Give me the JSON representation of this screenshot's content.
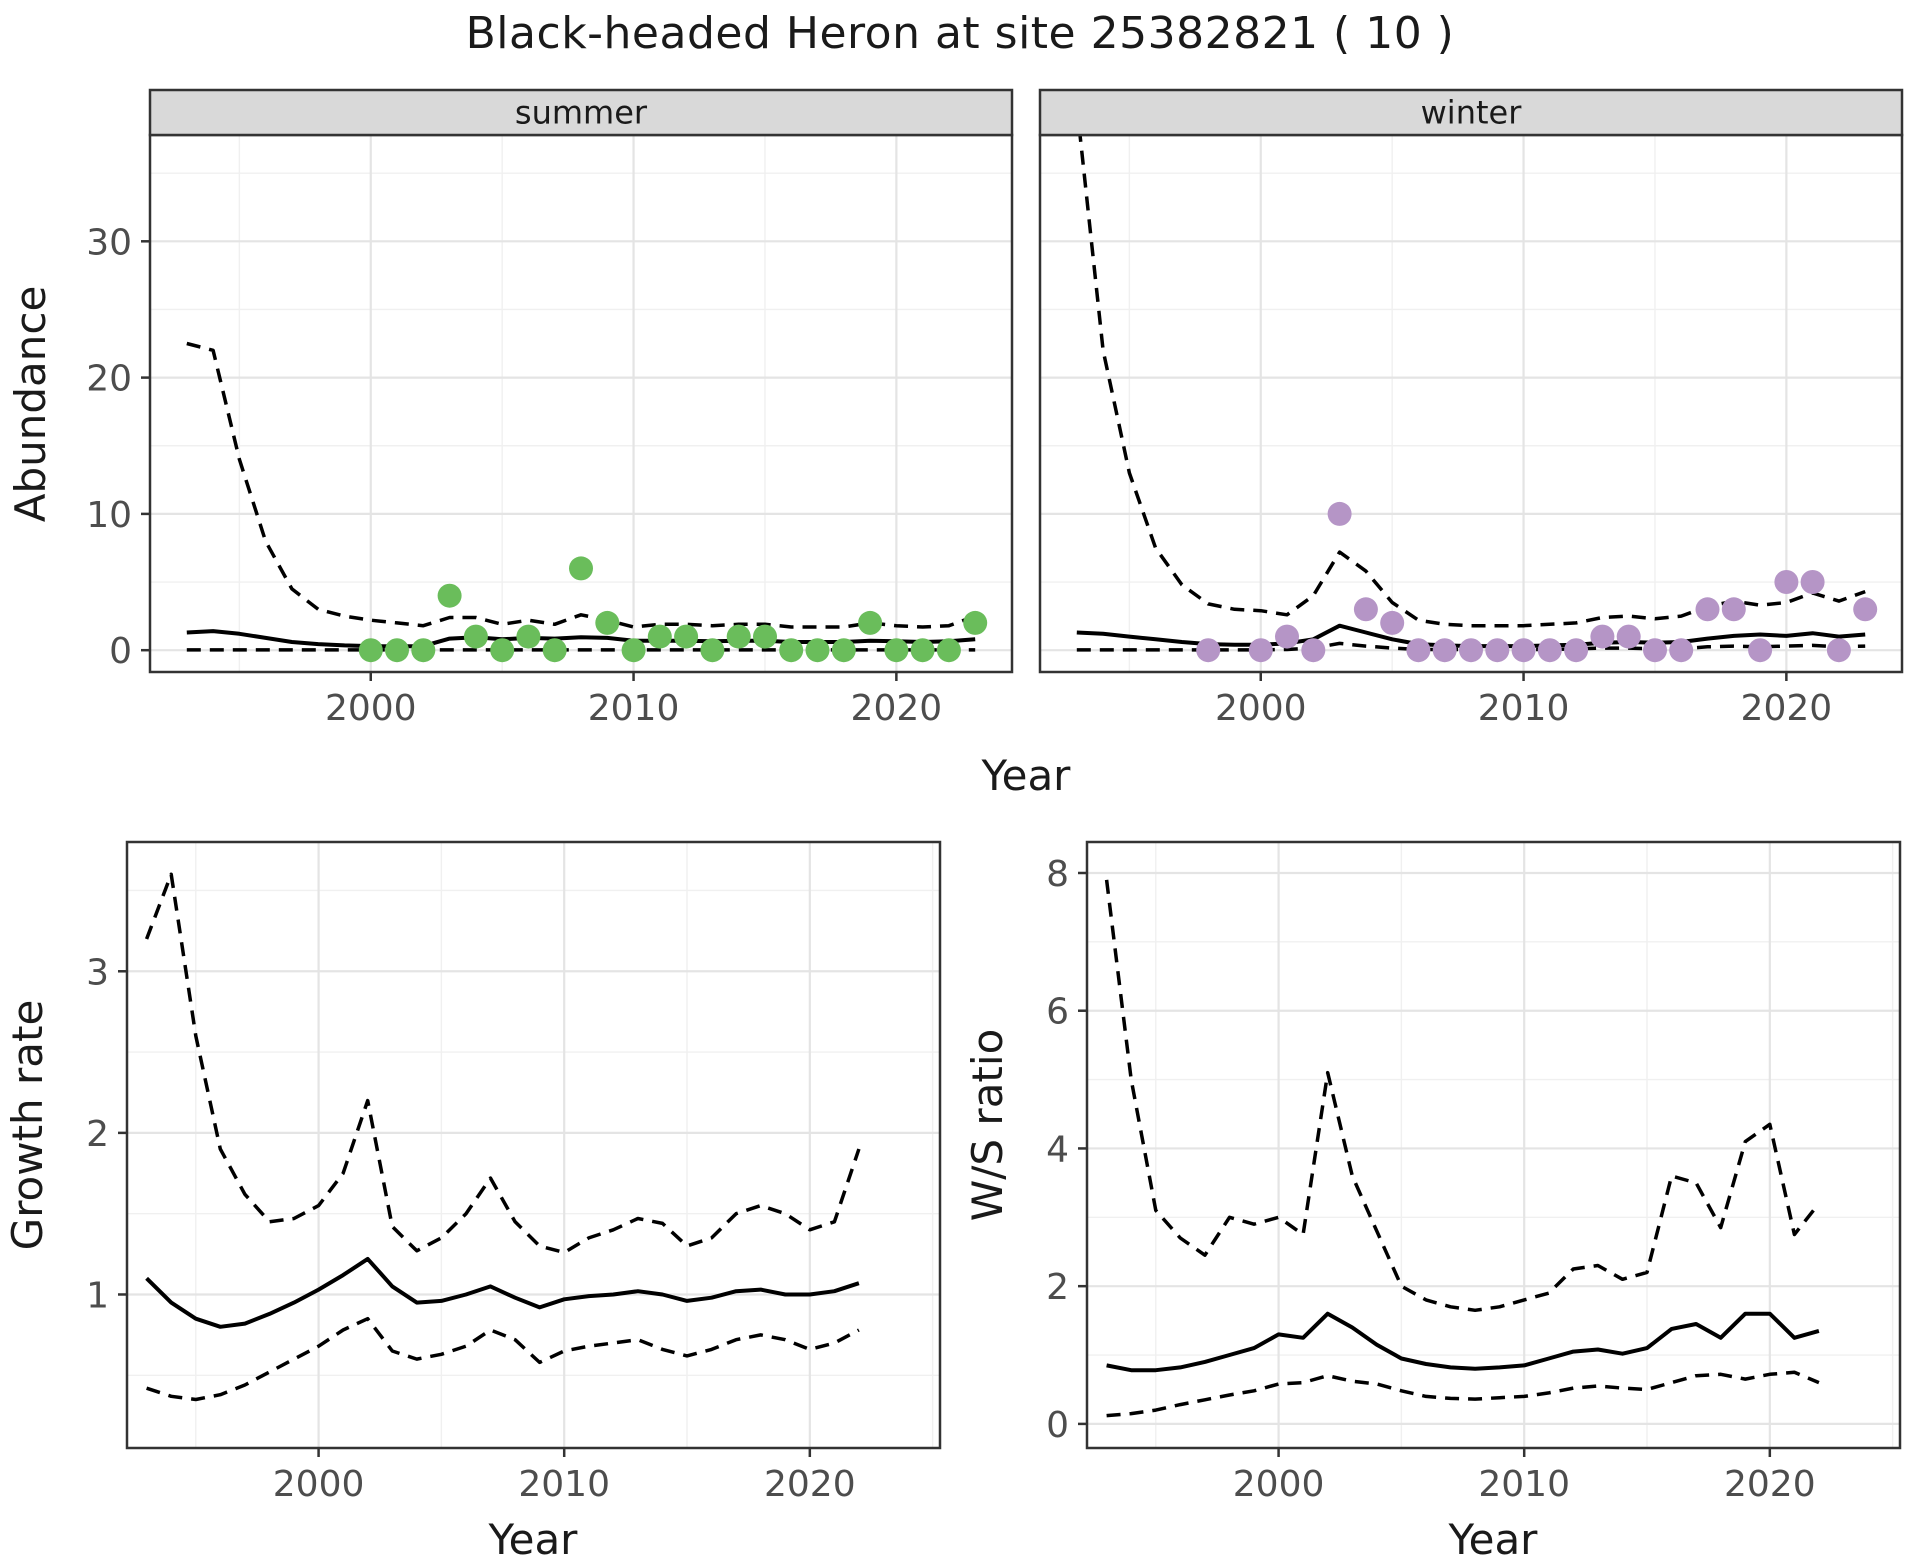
{
  "title": "Black-headed Heron at site 25382821 ( 10 )",
  "colors": {
    "summer_point": "#6abd5b",
    "winter_point": "#b595c6",
    "fit_line": "#000000",
    "ci_line": "#101010",
    "panel_border": "#333333",
    "strip_bg": "#d9d9d9",
    "grid_major": "#e4e4e4",
    "grid_minor": "#f0f0f0",
    "axis_text": "#4d4d4d",
    "title_text": "#1a1a1a"
  },
  "chart_data": {
    "abundance": {
      "type": "line",
      "xlabel": "Year",
      "ylabel": "Abundance",
      "xlim": [
        1991.6,
        2024.4
      ],
      "ylim": [
        -1.6,
        37.8
      ],
      "xticks": [
        2000,
        2010,
        2020
      ],
      "xminor": [
        1995,
        2005,
        2015
      ],
      "yticks": [
        0,
        10,
        20,
        30
      ],
      "yminor": [
        5,
        15,
        25,
        35
      ],
      "legend_position": "none",
      "grid": true,
      "facets": [
        {
          "label": "summer",
          "point_color": "#6abd5b",
          "obs": {
            "years": [
              2000,
              2001,
              2002,
              2003,
              2004,
              2005,
              2006,
              2007,
              2008,
              2009,
              2010,
              2011,
              2012,
              2013,
              2014,
              2015,
              2016,
              2017,
              2018,
              2019,
              2020,
              2021,
              2022,
              2023
            ],
            "values": [
              0,
              0,
              0,
              4,
              1,
              0,
              1,
              0,
              6,
              2,
              0,
              1,
              1,
              0,
              1,
              1,
              0,
              0,
              0,
              2,
              0,
              0,
              0,
              2
            ]
          },
          "fit_years": [
            1993,
            1994,
            1995,
            1996,
            1997,
            1998,
            1999,
            2000,
            2001,
            2002,
            2003,
            2004,
            2005,
            2006,
            2007,
            2008,
            2009,
            2010,
            2011,
            2012,
            2013,
            2014,
            2015,
            2016,
            2017,
            2018,
            2019,
            2020,
            2021,
            2022,
            2023
          ],
          "fit": [
            1.3,
            1.4,
            1.2,
            0.9,
            0.6,
            0.45,
            0.35,
            0.3,
            0.28,
            0.3,
            0.85,
            0.95,
            0.8,
            0.9,
            0.85,
            0.95,
            0.9,
            0.7,
            0.7,
            0.7,
            0.65,
            0.7,
            0.7,
            0.6,
            0.6,
            0.6,
            0.7,
            0.65,
            0.6,
            0.65,
            0.8
          ],
          "upper": [
            22.5,
            22,
            14,
            8,
            4.5,
            3.0,
            2.5,
            2.2,
            2.0,
            1.8,
            2.4,
            2.4,
            1.9,
            2.2,
            1.9,
            2.6,
            2.2,
            1.7,
            1.9,
            1.9,
            1.8,
            1.9,
            1.9,
            1.7,
            1.7,
            1.7,
            2.0,
            1.8,
            1.7,
            1.8,
            2.5
          ],
          "lower": [
            0.02,
            0.02,
            0.02,
            0.02,
            0.02,
            0.02,
            0.02,
            0.02,
            0.02,
            0.02,
            0.02,
            0.02,
            0.02,
            0.02,
            0.02,
            0.02,
            0.02,
            0.02,
            0.02,
            0.02,
            0.02,
            0.02,
            0.02,
            0.02,
            0.02,
            0.02,
            0.02,
            0.02,
            0.02,
            0.02,
            0.02
          ]
        },
        {
          "label": "winter",
          "point_color": "#b595c6",
          "obs": {
            "years": [
              1998,
              2000,
              2001,
              2002,
              2003,
              2004,
              2005,
              2006,
              2007,
              2008,
              2009,
              2010,
              2011,
              2012,
              2013,
              2014,
              2015,
              2016,
              2017,
              2018,
              2019,
              2020,
              2021,
              2022,
              2023
            ],
            "values": [
              0,
              0,
              1,
              0,
              10,
              3,
              2,
              0,
              0,
              0,
              0,
              0,
              0,
              0,
              1,
              1,
              0,
              0,
              3,
              3,
              0,
              5,
              5,
              0,
              3
            ]
          },
          "fit_years": [
            1993,
            1994,
            1995,
            1996,
            1997,
            1998,
            1999,
            2000,
            2001,
            2002,
            2003,
            2004,
            2005,
            2006,
            2007,
            2008,
            2009,
            2010,
            2011,
            2012,
            2013,
            2014,
            2015,
            2016,
            2017,
            2018,
            2019,
            2020,
            2021,
            2022,
            2023
          ],
          "fit": [
            1.3,
            1.2,
            1.0,
            0.8,
            0.6,
            0.45,
            0.4,
            0.4,
            0.5,
            0.8,
            1.8,
            1.3,
            0.8,
            0.45,
            0.35,
            0.3,
            0.3,
            0.3,
            0.35,
            0.4,
            0.55,
            0.6,
            0.55,
            0.6,
            0.85,
            1.05,
            1.15,
            1.05,
            1.25,
            1.0,
            1.15
          ],
          "upper": [
            40,
            22,
            13,
            7.5,
            4.8,
            3.4,
            3.0,
            2.9,
            2.6,
            4.0,
            7.2,
            5.8,
            3.5,
            2.2,
            1.9,
            1.8,
            1.8,
            1.8,
            1.9,
            2.0,
            2.4,
            2.5,
            2.3,
            2.5,
            3.2,
            3.6,
            3.3,
            3.5,
            4.2,
            3.6,
            4.3
          ],
          "lower": [
            0.02,
            0.02,
            0.02,
            0.02,
            0.02,
            0.02,
            0.02,
            0.02,
            0.05,
            0.15,
            0.5,
            0.3,
            0.15,
            0.05,
            0.05,
            0.05,
            0.05,
            0.05,
            0.05,
            0.1,
            0.15,
            0.15,
            0.1,
            0.1,
            0.25,
            0.3,
            0.25,
            0.3,
            0.35,
            0.25,
            0.3
          ]
        }
      ]
    },
    "growth_rate": {
      "type": "line",
      "xlabel": "Year",
      "ylabel": "Growth rate",
      "xlim": [
        1992.2,
        2025.3
      ],
      "ylim": [
        0.05,
        3.8
      ],
      "xticks": [
        2000,
        2010,
        2020
      ],
      "xminor": [
        1995,
        2005,
        2015,
        2025
      ],
      "yticks": [
        1,
        2,
        3
      ],
      "yminor": [
        0.5,
        1.5,
        2.5,
        3.5
      ],
      "years": [
        1993,
        1994,
        1995,
        1996,
        1997,
        1998,
        1999,
        2000,
        2001,
        2002,
        2003,
        2004,
        2005,
        2006,
        2007,
        2008,
        2009,
        2010,
        2011,
        2012,
        2013,
        2014,
        2015,
        2016,
        2017,
        2018,
        2019,
        2020,
        2021,
        2022
      ],
      "fit": [
        1.1,
        0.95,
        0.85,
        0.8,
        0.82,
        0.88,
        0.95,
        1.03,
        1.12,
        1.22,
        1.05,
        0.95,
        0.96,
        1.0,
        1.05,
        0.98,
        0.92,
        0.97,
        0.99,
        1.0,
        1.02,
        1.0,
        0.96,
        0.98,
        1.02,
        1.03,
        1.0,
        1.0,
        1.02,
        1.07
      ],
      "upper": [
        3.2,
        3.6,
        2.6,
        1.9,
        1.62,
        1.45,
        1.47,
        1.55,
        1.75,
        2.2,
        1.42,
        1.27,
        1.35,
        1.5,
        1.72,
        1.45,
        1.3,
        1.26,
        1.35,
        1.4,
        1.47,
        1.44,
        1.3,
        1.35,
        1.5,
        1.55,
        1.5,
        1.4,
        1.45,
        1.9
      ],
      "lower": [
        0.42,
        0.37,
        0.35,
        0.38,
        0.44,
        0.52,
        0.6,
        0.68,
        0.78,
        0.85,
        0.65,
        0.6,
        0.63,
        0.68,
        0.78,
        0.72,
        0.58,
        0.65,
        0.68,
        0.7,
        0.72,
        0.66,
        0.62,
        0.66,
        0.72,
        0.75,
        0.72,
        0.66,
        0.7,
        0.78
      ]
    },
    "ws_ratio": {
      "type": "line",
      "xlabel": "Year",
      "ylabel": "W/S ratio",
      "xlim": [
        1992.2,
        2025.3
      ],
      "ylim": [
        -0.35,
        8.45
      ],
      "xticks": [
        2000,
        2010,
        2020
      ],
      "xminor": [
        1995,
        2005,
        2015,
        2025
      ],
      "yticks": [
        0,
        2,
        4,
        6,
        8
      ],
      "yminor": [
        1,
        3,
        5,
        7
      ],
      "years": [
        1993,
        1994,
        1995,
        1996,
        1997,
        1998,
        1999,
        2000,
        2001,
        2002,
        2003,
        2004,
        2005,
        2006,
        2007,
        2008,
        2009,
        2010,
        2011,
        2012,
        2013,
        2014,
        2015,
        2016,
        2017,
        2018,
        2019,
        2020,
        2021,
        2022
      ],
      "fit": [
        0.85,
        0.78,
        0.78,
        0.82,
        0.9,
        1.0,
        1.1,
        1.3,
        1.25,
        1.6,
        1.4,
        1.15,
        0.95,
        0.87,
        0.82,
        0.8,
        0.82,
        0.85,
        0.95,
        1.05,
        1.08,
        1.02,
        1.1,
        1.38,
        1.45,
        1.25,
        1.6,
        1.6,
        1.25,
        1.35
      ],
      "upper": [
        7.9,
        5.0,
        3.1,
        2.7,
        2.45,
        3.0,
        2.9,
        3.0,
        2.75,
        5.1,
        3.6,
        2.8,
        2.0,
        1.8,
        1.7,
        1.65,
        1.7,
        1.8,
        1.9,
        2.25,
        2.3,
        2.1,
        2.2,
        3.6,
        3.5,
        2.85,
        4.1,
        4.35,
        2.75,
        3.2
      ],
      "lower": [
        0.12,
        0.15,
        0.2,
        0.28,
        0.35,
        0.42,
        0.48,
        0.58,
        0.6,
        0.7,
        0.62,
        0.58,
        0.48,
        0.4,
        0.37,
        0.36,
        0.38,
        0.4,
        0.45,
        0.52,
        0.55,
        0.52,
        0.5,
        0.6,
        0.7,
        0.72,
        0.65,
        0.72,
        0.75,
        0.6
      ]
    }
  }
}
